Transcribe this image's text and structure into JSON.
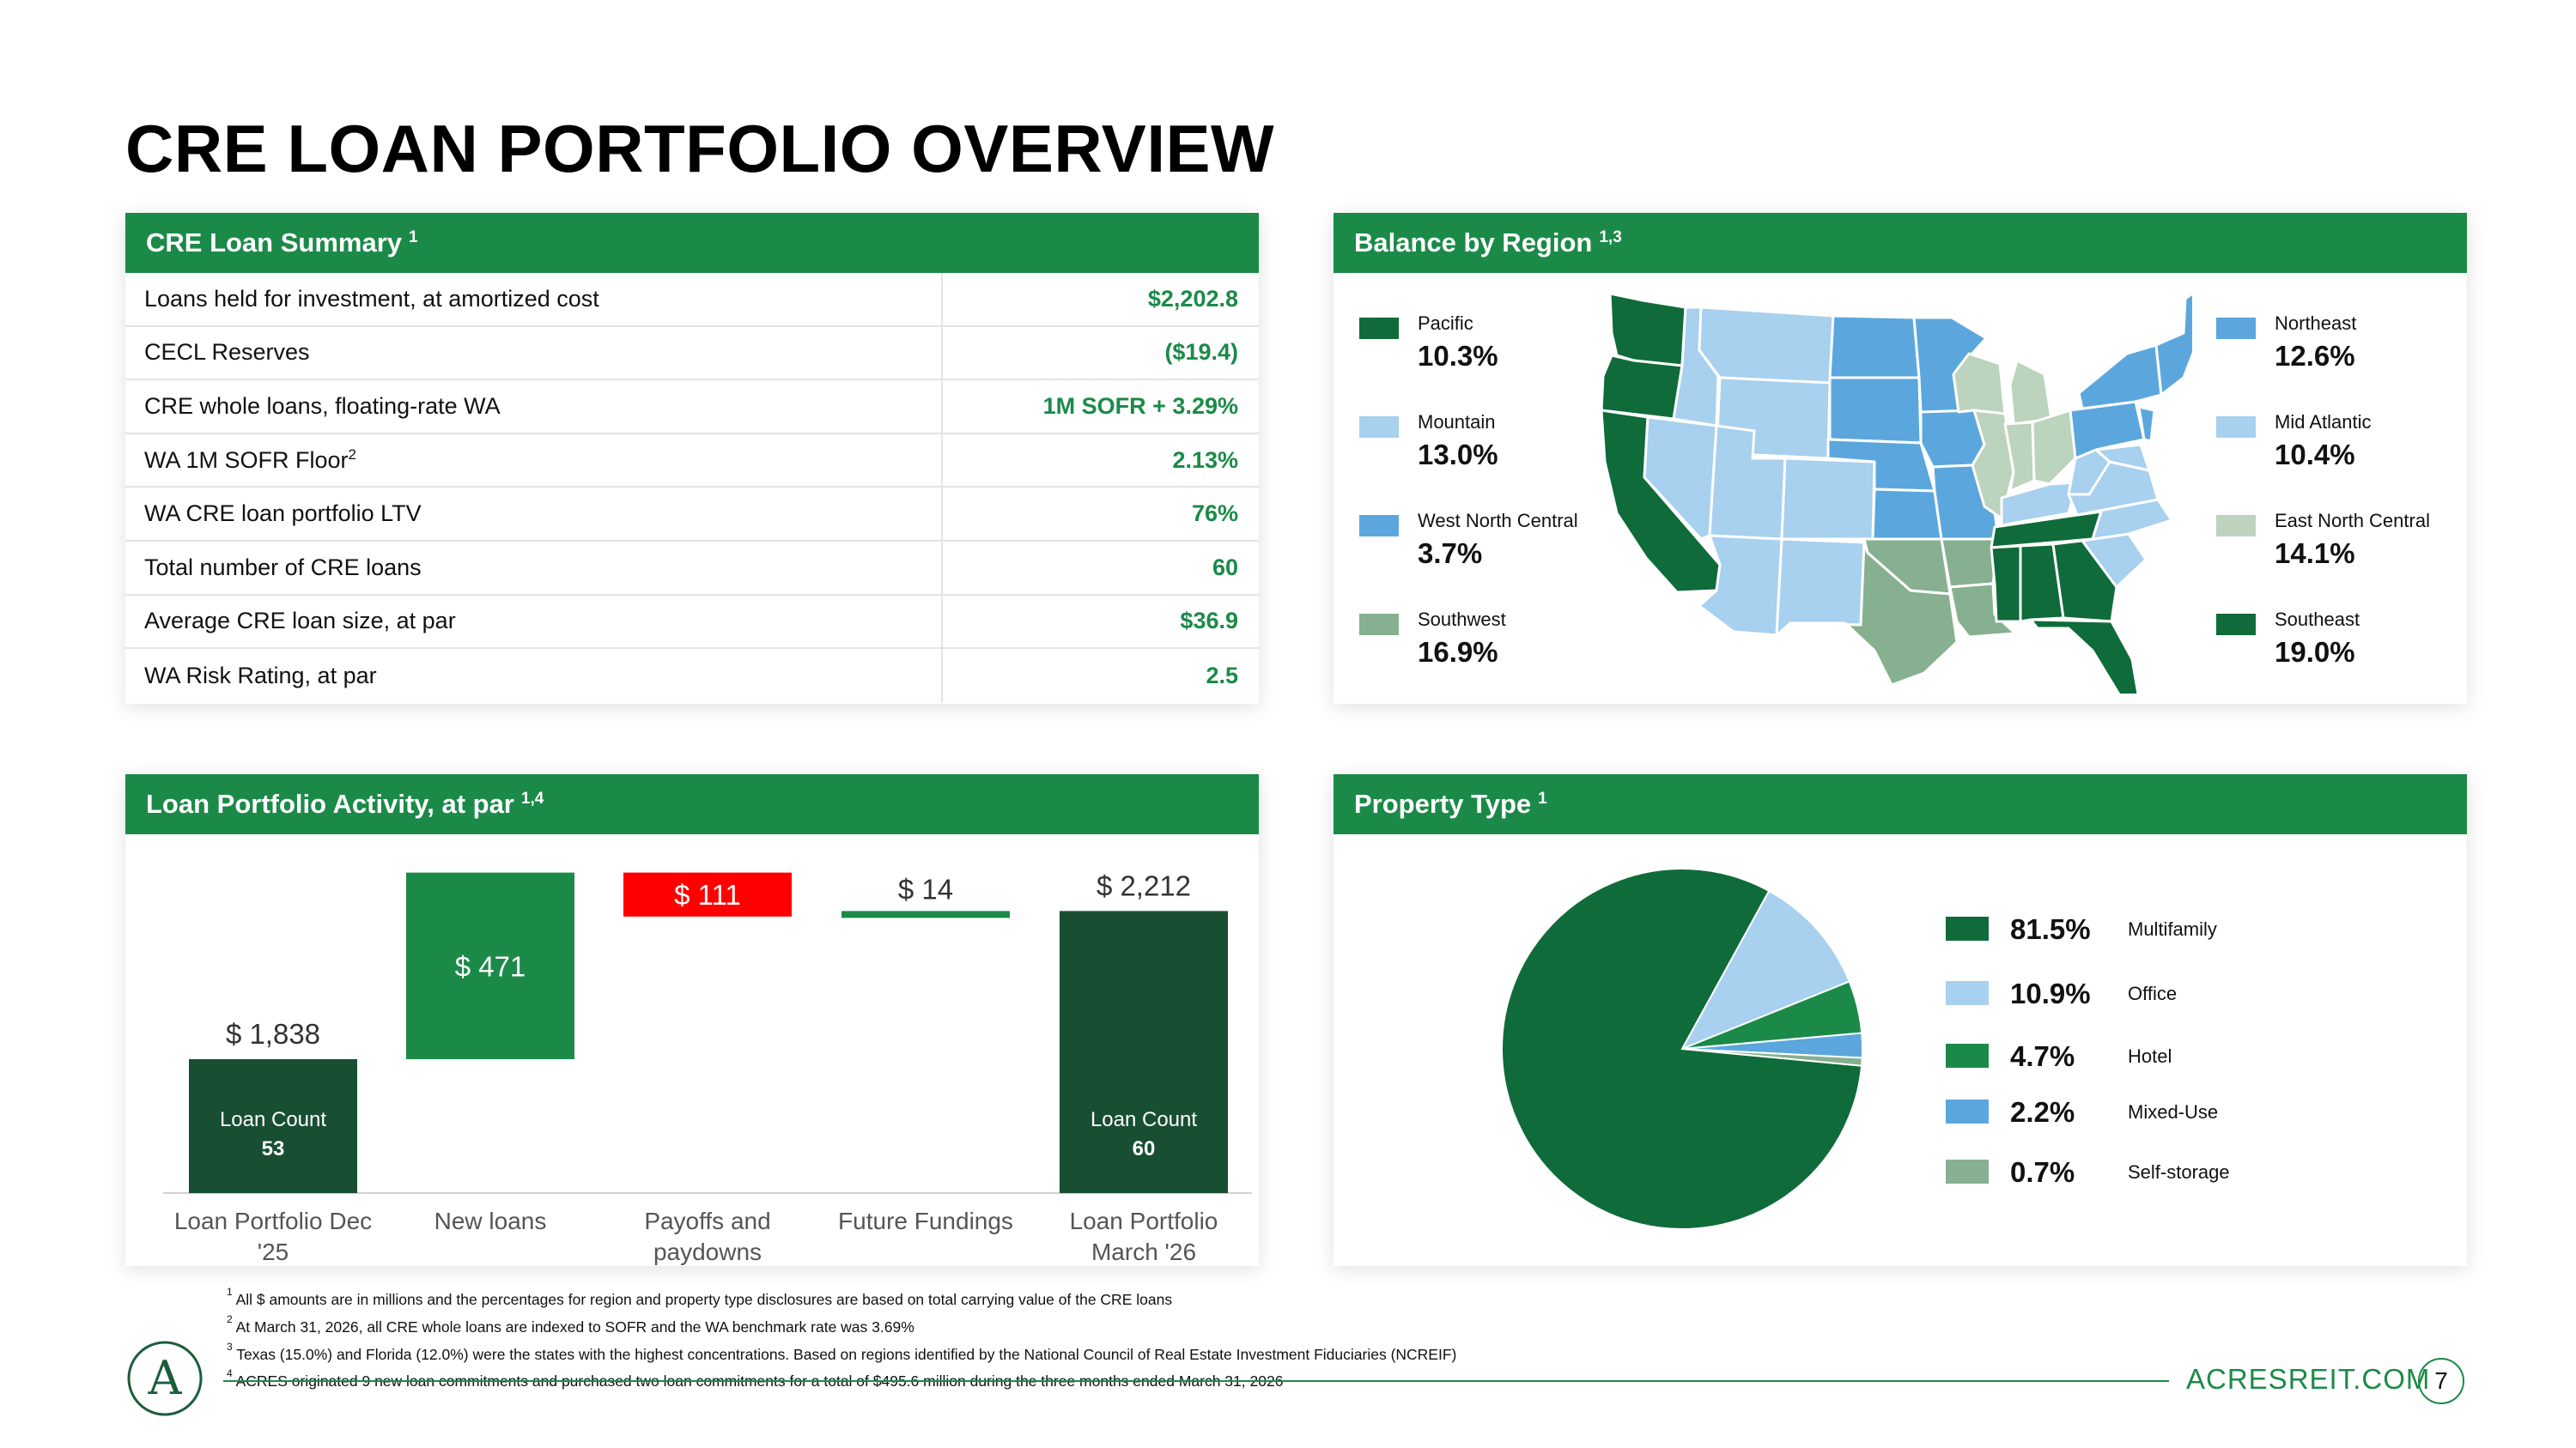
{
  "title": "CRE LOAN PORTFOLIO OVERVIEW",
  "summary": {
    "header": "CRE Loan Summary",
    "header_sup": "1",
    "rows": [
      {
        "label": "Loans held for investment, at amortized cost",
        "sup": "",
        "value": "$2,202.8"
      },
      {
        "label": "CECL Reserves",
        "sup": "",
        "value": "($19.4)"
      },
      {
        "label": "CRE whole loans, floating-rate WA",
        "sup": "",
        "value": "1M SOFR + 3.29%"
      },
      {
        "label": "WA 1M SOFR Floor",
        "sup": "2",
        "value": "2.13%"
      },
      {
        "label": "WA CRE loan portfolio LTV",
        "sup": "",
        "value": "76%"
      },
      {
        "label": "Total number of CRE loans",
        "sup": "",
        "value": "60"
      },
      {
        "label": "Average CRE loan size, at par",
        "sup": "",
        "value": "$36.9"
      },
      {
        "label": "WA Risk Rating, at par",
        "sup": "",
        "value": "2.5"
      }
    ]
  },
  "region": {
    "header": "Balance by Region",
    "header_sup": "1,3",
    "legend": [
      {
        "name": "Pacific",
        "value": "10.3%",
        "color": "#0f6b3a"
      },
      {
        "name": "Mountain",
        "value": "13.0%",
        "color": "#a8d0ef"
      },
      {
        "name": "West North Central",
        "value": "3.7%",
        "color": "#5ba7dd"
      },
      {
        "name": "Southwest",
        "value": "16.9%",
        "color": "#86b08f"
      },
      {
        "name": "Northeast",
        "value": "12.6%",
        "color": "#5ba7dd"
      },
      {
        "name": "Mid Atlantic",
        "value": "10.4%",
        "color": "#a8d0ef"
      },
      {
        "name": "East North Central",
        "value": "14.1%",
        "color": "#bcd3be"
      },
      {
        "name": "Southeast",
        "value": "19.0%",
        "color": "#0f6b3a"
      }
    ]
  },
  "activity": {
    "header": "Loan Portfolio Activity, at par",
    "header_sup": "1,4",
    "chart_data": {
      "type": "bar",
      "subtype": "waterfall",
      "categories": [
        "Loan Portfolio Dec '25",
        "New loans",
        "Payoffs and paydowns",
        "Future Fundings",
        "Loan Portfolio March '26"
      ],
      "values": [
        1838,
        471,
        -111,
        14,
        2212
      ],
      "value_labels": [
        "$ 1,838",
        "$ 471",
        "$ 111",
        "$ 14",
        "$ 2,212"
      ],
      "inner_labels": [
        {
          "index": 0,
          "line1": "Loan Count",
          "line2": "53"
        },
        {
          "index": 4,
          "line1": "Loan Count",
          "line2": "60"
        }
      ],
      "colors": {
        "total": "#184f33",
        "increase": "#1b8a48",
        "decrease": "#ff0000"
      }
    }
  },
  "property": {
    "header": "Property Type",
    "header_sup": "1",
    "chart_data": {
      "type": "pie",
      "labels": [
        "Multifamily",
        "Office",
        "Hotel",
        "Mixed-Use",
        "Self-storage"
      ],
      "values": [
        81.5,
        10.9,
        4.7,
        2.2,
        0.7
      ],
      "display": [
        "81.5%",
        "10.9%",
        "4.7%",
        "2.2%",
        "0.7%"
      ],
      "colors": [
        "#0f6b3a",
        "#a8d0ef",
        "#1b8a48",
        "#5ba7dd",
        "#86b08f"
      ]
    }
  },
  "footnotes": [
    {
      "sup": "1",
      "text": "All $ amounts are in millions and the percentages for region and property type disclosures are based on total carrying value of the CRE loans"
    },
    {
      "sup": "2",
      "text": "At March 31, 2026, all CRE whole loans are indexed to SOFR and the WA benchmark rate was 3.69%"
    },
    {
      "sup": "3",
      "text": "Texas (15.0%) and Florida (12.0%) were the states with the highest concentrations.  Based on regions identified by the National Council of Real Estate Investment Fiduciaries (NCREIF)"
    },
    {
      "sup": "4",
      "text": "ACRES originated 9 new loan commitments and purchased two loan commitments for a total of $495.6 million during the three months ended March 31, 2026"
    }
  ],
  "footer": {
    "site": "ACRESREIT.COM",
    "page": "7",
    "logo_letter": "A"
  }
}
